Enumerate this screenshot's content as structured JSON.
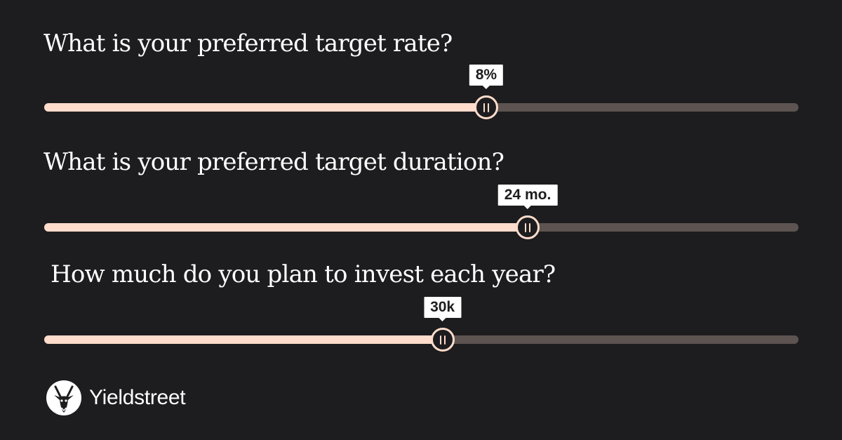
{
  "questions": [
    {
      "label": "What is your preferred target rate?",
      "value_label": "8%",
      "fraction": 0.586
    },
    {
      "label": "What is your preferred target duration?",
      "value_label": "24 mo.",
      "fraction": 0.641
    },
    {
      "label": "How much do you plan to invest each year?",
      "value_label": "30k",
      "fraction": 0.528
    }
  ],
  "brand": {
    "name": "Yieldstreet",
    "logo_icon": "antelope-head-icon"
  },
  "colors": {
    "background": "#1d1d1f",
    "accent": "#ffdccb",
    "track": "#5d5451",
    "text": "#ffffff"
  }
}
